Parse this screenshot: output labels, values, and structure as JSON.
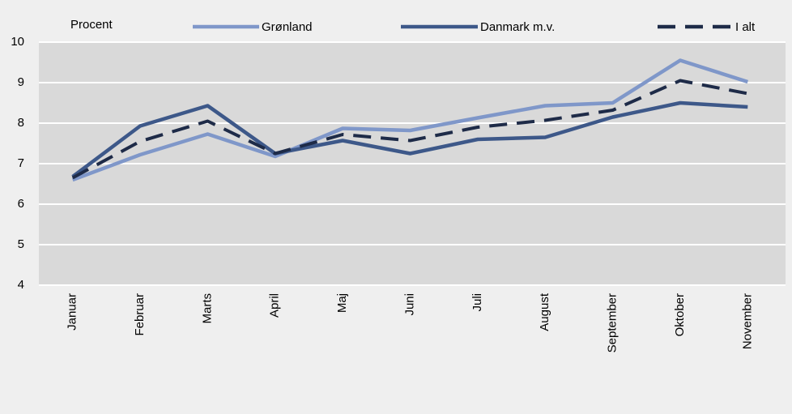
{
  "chart_data": {
    "type": "line",
    "y_label": "Procent",
    "categories": [
      "Januar",
      "Februar",
      "Marts",
      "April",
      "Maj",
      "Juni",
      "Juli",
      "August",
      "September",
      "Oktober",
      "November"
    ],
    "series": [
      {
        "name": "Grønland",
        "color": "#7f97c9",
        "dashed": false,
        "values": [
          6.6,
          7.22,
          7.73,
          7.18,
          7.87,
          7.82,
          8.13,
          8.43,
          8.5,
          9.55,
          9.02
        ]
      },
      {
        "name": "Danmark m.v.",
        "color": "#3d5889",
        "dashed": false,
        "values": [
          6.68,
          7.93,
          8.43,
          7.25,
          7.57,
          7.25,
          7.6,
          7.65,
          8.15,
          8.5,
          8.4
        ]
      },
      {
        "name": "I alt",
        "color": "#1e2b48",
        "dashed": true,
        "values": [
          6.65,
          7.55,
          8.05,
          7.25,
          7.72,
          7.57,
          7.9,
          8.07,
          8.32,
          9.05,
          8.73
        ]
      }
    ],
    "ylim": [
      4,
      10
    ],
    "yticks": [
      4,
      5,
      6,
      7,
      8,
      9,
      10
    ],
    "grid": true,
    "legend": "top"
  }
}
